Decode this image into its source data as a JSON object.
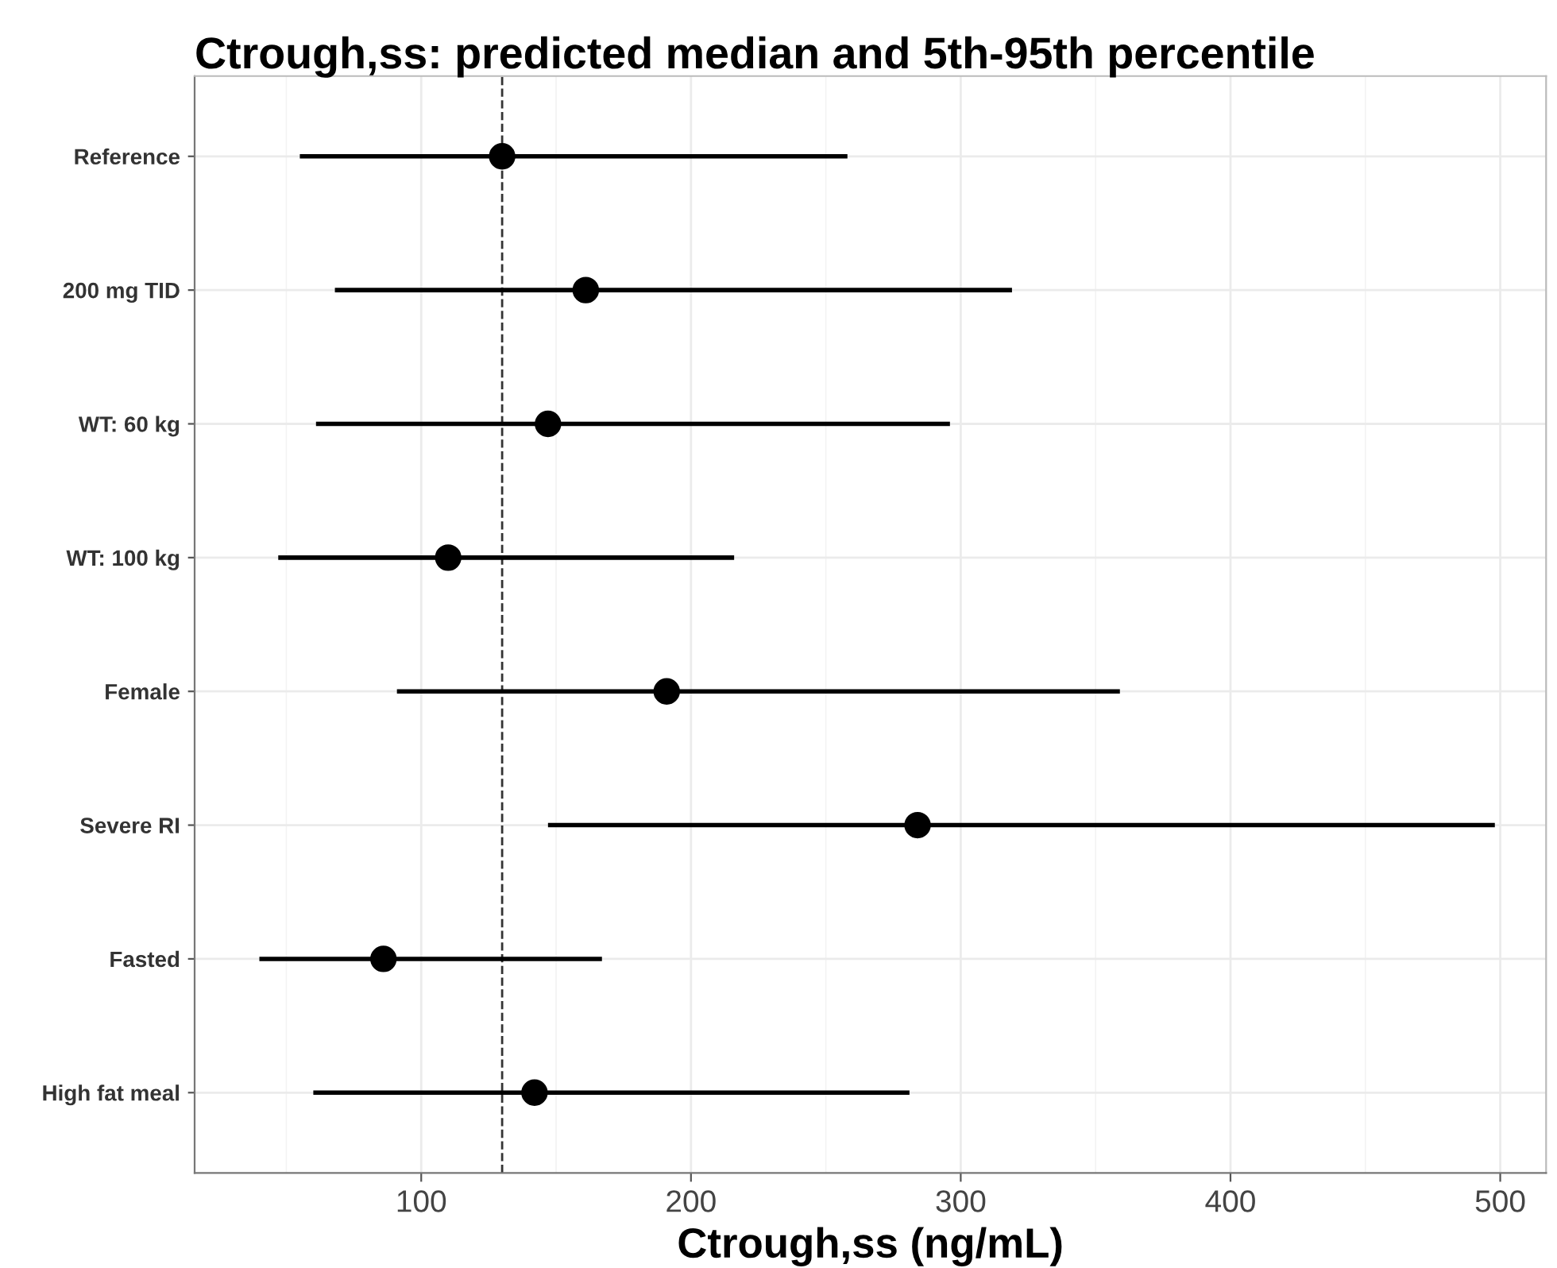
{
  "chart_data": {
    "type": "scatter",
    "orientation": "horizontal",
    "title": "Ctrough,ss: predicted median and 5th-95th percentile",
    "xlabel": "Ctrough,ss (ng/mL)",
    "categories": [
      "Reference",
      "200 mg TID",
      "WT: 60 kg",
      "WT: 100 kg",
      "Female",
      "Severe RI",
      "Fasted",
      "High fat meal"
    ],
    "series": [
      {
        "color": "#000000",
        "values": [
          130,
          161,
          147,
          110,
          191,
          284,
          86,
          142
        ],
        "errors": [
          [
            55,
            258
          ],
          [
            68,
            319
          ],
          [
            61,
            296
          ],
          [
            47,
            216
          ],
          [
            91,
            359
          ],
          [
            147,
            498
          ],
          [
            40,
            167
          ],
          [
            60,
            281
          ]
        ]
      }
    ],
    "xlim": [
      16,
      517
    ],
    "xticks": [
      100,
      200,
      300,
      400,
      500
    ],
    "ref_lines": [
      {
        "axis": "x",
        "value": 130,
        "color": "#333333",
        "line_style": "dashed"
      }
    ],
    "grid": true,
    "marker": "circle"
  }
}
